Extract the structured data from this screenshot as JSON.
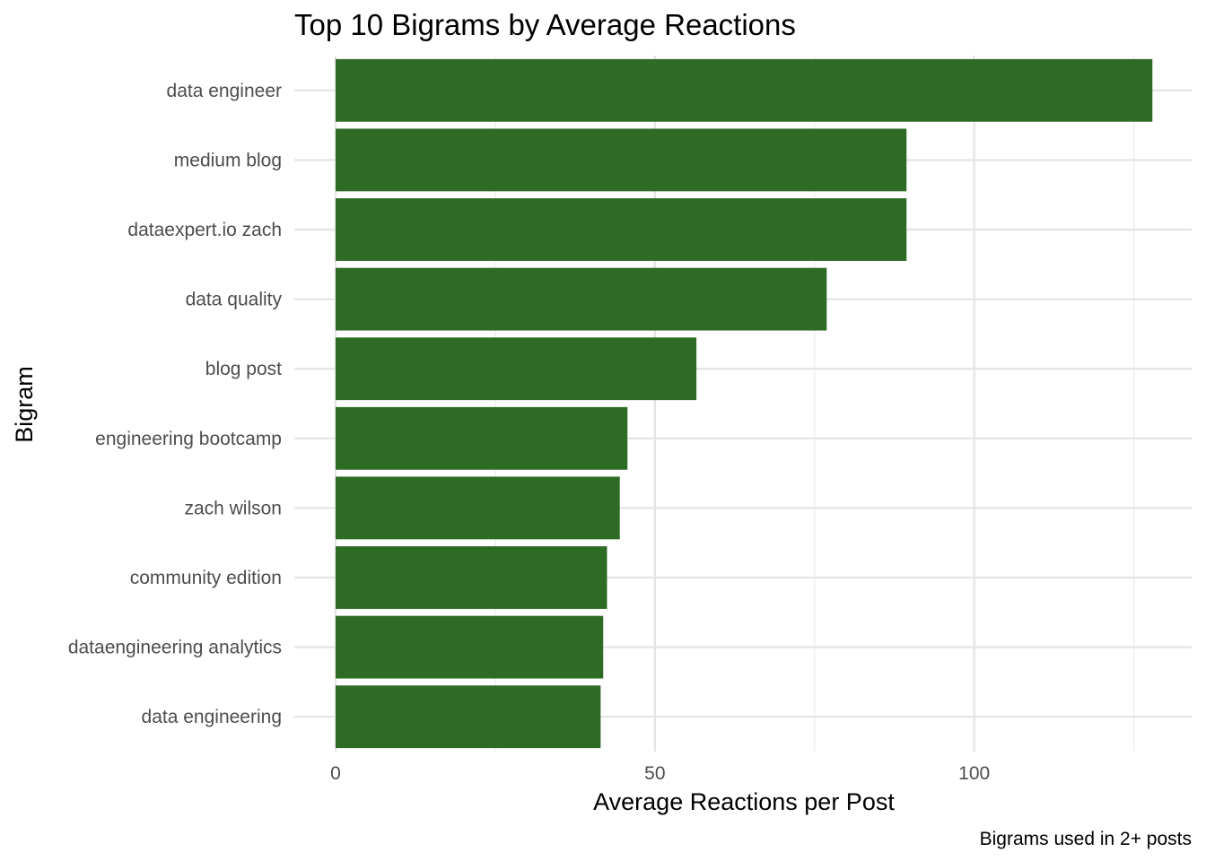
{
  "chart_data": {
    "type": "bar",
    "orientation": "horizontal",
    "title": "Top 10 Bigrams by Average Reactions",
    "xlabel": "Average Reactions per Post",
    "ylabel": "Bigram",
    "caption": "Bigrams used in 2+ posts",
    "categories": [
      "data engineer",
      "medium blog",
      "dataexpert.io zach",
      "data quality",
      "blog post",
      "engineering bootcamp",
      "zach wilson",
      "community edition",
      "dataengineering analytics",
      "data engineering"
    ],
    "values": [
      127.9,
      89.4,
      89.4,
      76.9,
      56.5,
      45.7,
      44.5,
      42.5,
      41.9,
      41.5
    ],
    "xlim": [
      0,
      134
    ],
    "xticks": [
      0,
      50,
      100
    ],
    "xtick_labels": [
      "0",
      "50",
      "100"
    ],
    "bar_color": "#2e6b25",
    "grid": true,
    "legend": "none"
  }
}
